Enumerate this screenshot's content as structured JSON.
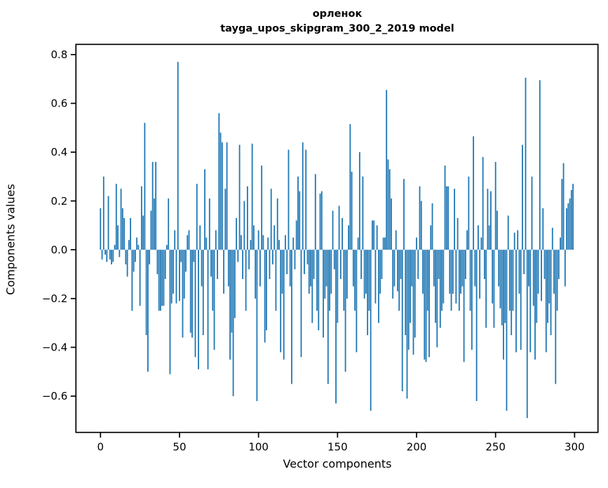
{
  "chart_data": {
    "type": "bar",
    "title_line1": "орленок",
    "title_line2": "tayga_upos_skipgram_300_2_2019 model",
    "xlabel": "Vector components",
    "ylabel": "Components values",
    "bar_color": "#1f77b4",
    "axis_color": "#000000",
    "background_color": "#ffffff",
    "xlim": [
      -15.53,
      314.8
    ],
    "ylim": [
      -0.7486,
      0.8417
    ],
    "grid": false,
    "legend": null,
    "x_ticks": [
      {
        "v": 0,
        "label": "0"
      },
      {
        "v": 50,
        "label": "50"
      },
      {
        "v": 100,
        "label": "100"
      },
      {
        "v": 150,
        "label": "150"
      },
      {
        "v": 200,
        "label": "200"
      },
      {
        "v": 250,
        "label": "250"
      },
      {
        "v": 300,
        "label": "300"
      }
    ],
    "y_ticks": [
      {
        "v": 0.8,
        "label": "0.8"
      },
      {
        "v": 0.6,
        "label": "0.6"
      },
      {
        "v": 0.4,
        "label": "0.4"
      },
      {
        "v": 0.2,
        "label": "0.2"
      },
      {
        "v": 0.0,
        "label": "0.0"
      },
      {
        "v": -0.2,
        "label": "−0.2"
      },
      {
        "v": -0.4,
        "label": "−0.4"
      },
      {
        "v": -0.6,
        "label": "−0.6"
      }
    ],
    "n_components": 300,
    "values": [
      0.17,
      -0.04,
      0.3,
      -0.02,
      -0.05,
      0.22,
      -0.04,
      -0.06,
      -0.05,
      0.02,
      0.27,
      0.1,
      -0.03,
      0.25,
      0.17,
      0.13,
      -0.06,
      -0.11,
      0.04,
      0.13,
      -0.25,
      -0.09,
      -0.05,
      0.05,
      0.02,
      -0.23,
      0.26,
      0.14,
      0.52,
      -0.35,
      -0.5,
      -0.06,
      0.16,
      0.36,
      0.21,
      0.36,
      -0.1,
      -0.25,
      -0.25,
      -0.23,
      -0.23,
      -0.12,
      0.02,
      0.21,
      -0.51,
      -0.22,
      -0.18,
      0.08,
      -0.22,
      0.77,
      -0.21,
      -0.05,
      -0.36,
      -0.2,
      -0.09,
      0.06,
      0.08,
      -0.34,
      -0.36,
      -0.05,
      -0.44,
      0.27,
      -0.49,
      0.1,
      -0.15,
      -0.35,
      0.33,
      0.05,
      -0.49,
      0.21,
      -0.11,
      -0.25,
      -0.41,
      0.08,
      -0.12,
      0.56,
      0.48,
      0.44,
      -0.18,
      0.25,
      0.44,
      -0.15,
      -0.45,
      -0.34,
      -0.6,
      -0.28,
      0.13,
      -0.05,
      0.43,
      0.06,
      -0.12,
      0.2,
      -0.25,
      0.26,
      -0.08,
      0.04,
      0.435,
      0.1,
      -0.2,
      -0.62,
      0.08,
      -0.15,
      0.345,
      0.06,
      -0.38,
      -0.33,
      0.05,
      -0.12,
      0.25,
      -0.06,
      0.1,
      -0.25,
      0.21,
      0.04,
      -0.42,
      -0.18,
      -0.45,
      0.06,
      -0.1,
      0.41,
      -0.15,
      -0.55,
      0.05,
      -0.08,
      0.12,
      0.3,
      0.24,
      -0.44,
      0.44,
      -0.1,
      0.41,
      -0.06,
      -0.18,
      -0.15,
      -0.3,
      -0.12,
      0.31,
      -0.25,
      -0.33,
      0.23,
      0.24,
      -0.36,
      -0.2,
      -0.15,
      -0.55,
      -0.25,
      -0.18,
      0.16,
      -0.08,
      -0.63,
      -0.3,
      0.18,
      -0.12,
      0.13,
      -0.25,
      -0.5,
      -0.2,
      0.1,
      0.515,
      0.32,
      -0.15,
      -0.25,
      -0.42,
      0.05,
      0.4,
      -0.12,
      0.3,
      -0.2,
      -0.18,
      -0.35,
      -0.25,
      -0.66,
      0.12,
      0.12,
      -0.22,
      0.1,
      -0.3,
      -0.18,
      -0.12,
      0.05,
      0.05,
      0.655,
      0.37,
      0.33,
      0.21,
      -0.2,
      -0.15,
      0.08,
      -0.17,
      -0.25,
      -0.12,
      -0.58,
      0.29,
      -0.35,
      -0.61,
      -0.41,
      -0.3,
      -0.15,
      -0.43,
      -0.36,
      0.05,
      -0.12,
      0.26,
      0.2,
      -0.18,
      -0.45,
      -0.46,
      -0.25,
      -0.44,
      0.1,
      0.19,
      -0.15,
      -0.3,
      -0.4,
      -0.12,
      -0.32,
      -0.25,
      -0.22,
      0.345,
      0.26,
      0.26,
      -0.18,
      -0.25,
      -0.18,
      0.25,
      -0.22,
      0.13,
      -0.25,
      -0.18,
      -0.15,
      -0.46,
      -0.12,
      0.08,
      0.3,
      -0.25,
      -0.41,
      0.465,
      -0.15,
      -0.62,
      0.1,
      -0.2,
      0.05,
      0.38,
      -0.12,
      -0.32,
      0.25,
      0.1,
      0.24,
      -0.22,
      -0.32,
      0.36,
      0.16,
      -0.15,
      -0.24,
      -0.31,
      -0.45,
      -0.3,
      -0.66,
      0.14,
      -0.25,
      -0.35,
      -0.25,
      0.07,
      -0.42,
      0.08,
      -0.18,
      -0.41,
      0.43,
      -0.1,
      0.705,
      -0.69,
      -0.15,
      -0.42,
      0.3,
      -0.23,
      -0.45,
      -0.3,
      -0.18,
      0.695,
      -0.21,
      0.17,
      -0.12,
      -0.42,
      -0.3,
      -0.22,
      -0.35,
      0.09,
      -0.18,
      -0.55,
      -0.25,
      -0.12,
      0.05,
      0.29,
      0.355,
      -0.15,
      0.17,
      0.19,
      0.21,
      0.245,
      0.27
    ]
  }
}
